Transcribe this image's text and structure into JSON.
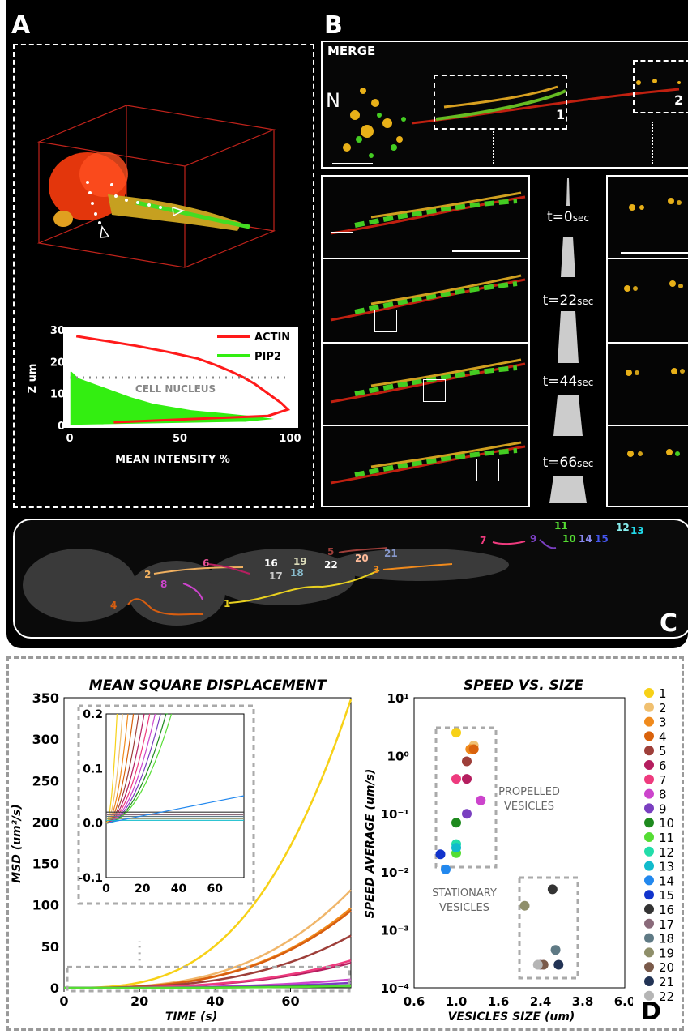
{
  "panels": {
    "a": "A",
    "b": "B",
    "c": "C",
    "d": "D"
  },
  "panel_a": {
    "arrow_label": "",
    "chart_data": {
      "type": "area",
      "xlabel": "MEAN INTENSITY %",
      "ylabel": "Z um",
      "xlim": [
        0,
        100
      ],
      "ylim": [
        0,
        30
      ],
      "xticks": [
        "0",
        "50",
        "100"
      ],
      "yticks": [
        "0",
        "10",
        "20",
        "30"
      ],
      "annotation": "CELL NUCLEUS",
      "nucleus_z": 15,
      "series": [
        {
          "name": "ACTIN",
          "color": "#ff1a1a",
          "z": [
            28,
            27,
            25,
            23,
            21,
            19,
            17,
            15,
            13,
            11,
            9,
            7,
            5,
            3,
            2,
            1
          ],
          "intensity": [
            3,
            12,
            30,
            45,
            58,
            66,
            73,
            79,
            84,
            88,
            92,
            96,
            99,
            90,
            55,
            20
          ]
        },
        {
          "name": "PIP2",
          "color": "#33ee11",
          "z": [
            17,
            15,
            13,
            11,
            9,
            7,
            5,
            4,
            3,
            2,
            1
          ],
          "intensity": [
            1,
            4,
            12,
            20,
            28,
            38,
            55,
            70,
            85,
            95,
            80
          ]
        }
      ]
    }
  },
  "panel_b": {
    "merge_label": "MERGE",
    "nucleus_label": "N",
    "roi1_label": "1",
    "roi2_label": "2",
    "timepoints": [
      {
        "t": "t=0",
        "unit": "sec"
      },
      {
        "t": "t=22",
        "unit": "sec"
      },
      {
        "t": "t=44",
        "unit": "sec"
      },
      {
        "t": "t=66",
        "unit": "sec"
      }
    ]
  },
  "panel_c": {
    "tracks": [
      "1",
      "2",
      "3",
      "4",
      "5",
      "6",
      "7",
      "8",
      "9",
      "10",
      "11",
      "12",
      "13",
      "14",
      "15",
      "16",
      "17",
      "18",
      "19",
      "20",
      "21",
      "22"
    ]
  },
  "panel_d": {
    "msd_chart": {
      "type": "line",
      "title": "MEAN SQUARE DISPLACEMENT",
      "xlabel": "TIME (s)",
      "ylabel": "MSD (um²/s)",
      "xlim": [
        0,
        76
      ],
      "ylim": [
        0,
        350
      ],
      "xticks": [
        "0",
        "20",
        "40",
        "60"
      ],
      "yticks": [
        "0",
        "50",
        "100",
        "150",
        "200",
        "250",
        "300",
        "350"
      ],
      "final_values": [
        {
          "id": "1",
          "color": "#f7d117",
          "end": 348
        },
        {
          "id": "2",
          "color": "#f0b66a",
          "end": 118
        },
        {
          "id": "3",
          "color": "#f08a1c",
          "end": 96
        },
        {
          "id": "4",
          "color": "#d85e10",
          "end": 93
        },
        {
          "id": "5",
          "color": "#9e3f3a",
          "end": 63
        },
        {
          "id": "6",
          "color": "#b51e5f",
          "end": 30
        },
        {
          "id": "7",
          "color": "#ee3b7e",
          "end": 33
        },
        {
          "id": "8",
          "color": "#cc44cc",
          "end": 10
        },
        {
          "id": "9",
          "color": "#7a3fc0",
          "end": 6
        },
        {
          "id": "10",
          "color": "#1e8a1e",
          "end": 3
        },
        {
          "id": "11",
          "color": "#55dd33",
          "end": 2
        }
      ],
      "inset": {
        "xlim": [
          0,
          76
        ],
        "ylim": [
          -0.1,
          0.2
        ],
        "xticks": [
          "0",
          "20",
          "40",
          "60"
        ],
        "yticks": [
          "-0.1",
          "0.0",
          "0.1",
          "0.2"
        ]
      }
    },
    "speed_chart": {
      "type": "scatter",
      "title": "SPEED VS. SIZE",
      "xlabel": "VESICLES SIZE (um)",
      "ylabel": "SPEED AVERAGE (um/s)",
      "xticks": [
        "0.6",
        "1.0",
        "1.6",
        "2.4",
        "3.8",
        "6.0"
      ],
      "yticks": [
        "10⁻⁴",
        "10⁻³",
        "10⁻²",
        "10⁻¹",
        "10⁰",
        "10¹"
      ],
      "y_scale": "log",
      "ylim": [
        0.0001,
        10
      ],
      "propelled_label": [
        "PROPELLED",
        "VESICLES"
      ],
      "stationary_label": [
        "STATIONARY",
        "VESICLES"
      ],
      "points": [
        {
          "id": "1",
          "size": 1.0,
          "speed": 2.5
        },
        {
          "id": "2",
          "size": 1.25,
          "speed": 1.5
        },
        {
          "id": "3",
          "size": 1.2,
          "speed": 1.3
        },
        {
          "id": "4",
          "size": 1.25,
          "speed": 1.3
        },
        {
          "id": "5",
          "size": 1.15,
          "speed": 0.8
        },
        {
          "id": "6",
          "size": 1.15,
          "speed": 0.4
        },
        {
          "id": "7",
          "size": 1.0,
          "speed": 0.4
        },
        {
          "id": "8",
          "size": 1.35,
          "speed": 0.17
        },
        {
          "id": "9",
          "size": 1.15,
          "speed": 0.1
        },
        {
          "id": "10",
          "size": 1.0,
          "speed": 0.07
        },
        {
          "id": "11",
          "size": 1.0,
          "speed": 0.021
        },
        {
          "id": "12",
          "size": 1.0,
          "speed": 0.03
        },
        {
          "id": "13",
          "size": 1.0,
          "speed": 0.026
        },
        {
          "id": "14",
          "size": 0.9,
          "speed": 0.011
        },
        {
          "id": "15",
          "size": 0.85,
          "speed": 0.02
        },
        {
          "id": "16",
          "size": 2.8,
          "speed": 0.005
        },
        {
          "id": "17",
          "size": 2.4,
          "speed": 0.00025
        },
        {
          "id": "18",
          "size": 2.9,
          "speed": 0.00045
        },
        {
          "id": "19",
          "size": 2.1,
          "speed": 0.0026
        },
        {
          "id": "20",
          "size": 2.5,
          "speed": 0.00025
        },
        {
          "id": "21",
          "size": 3.0,
          "speed": 0.00025
        },
        {
          "id": "22",
          "size": 2.35,
          "speed": 0.00025
        }
      ]
    },
    "legend": [
      {
        "id": "1",
        "color": "#f7d117"
      },
      {
        "id": "2",
        "color": "#f0c070"
      },
      {
        "id": "3",
        "color": "#f08a1c"
      },
      {
        "id": "4",
        "color": "#d9620c"
      },
      {
        "id": "5",
        "color": "#9e3f3a"
      },
      {
        "id": "6",
        "color": "#b51e5f"
      },
      {
        "id": "7",
        "color": "#ee3b7e"
      },
      {
        "id": "8",
        "color": "#cc44cc"
      },
      {
        "id": "9",
        "color": "#7a3fc0"
      },
      {
        "id": "10",
        "color": "#1e8a1e"
      },
      {
        "id": "11",
        "color": "#55dd33"
      },
      {
        "id": "12",
        "color": "#22ddaa"
      },
      {
        "id": "13",
        "color": "#11bbcc"
      },
      {
        "id": "14",
        "color": "#2288ee"
      },
      {
        "id": "15",
        "color": "#1133cc"
      },
      {
        "id": "16",
        "color": "#333333"
      },
      {
        "id": "17",
        "color": "#8a6a7a"
      },
      {
        "id": "18",
        "color": "#5f7a85"
      },
      {
        "id": "19",
        "color": "#8f8f6a"
      },
      {
        "id": "20",
        "color": "#7a5a4a"
      },
      {
        "id": "21",
        "color": "#223355"
      },
      {
        "id": "22",
        "color": "#b5b5b5"
      }
    ]
  }
}
